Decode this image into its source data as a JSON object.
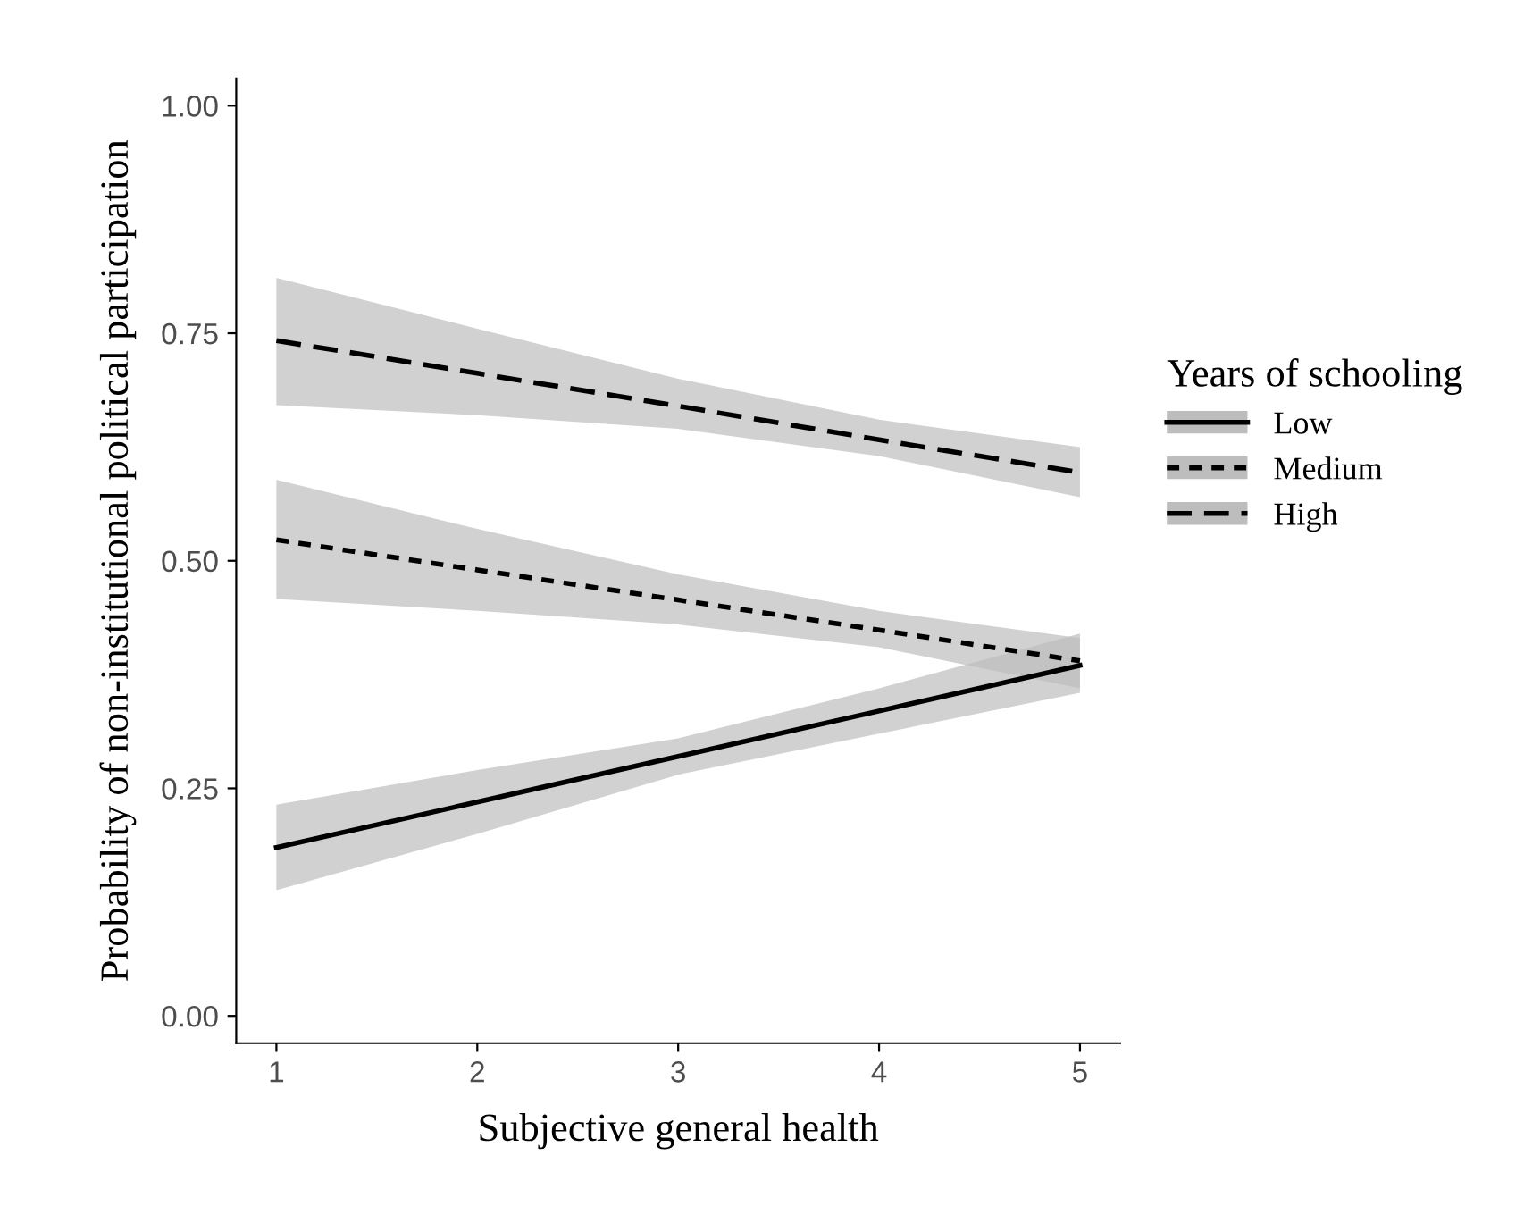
{
  "chart_data": {
    "type": "line",
    "xlabel": "Subjective general health",
    "ylabel": "Probability of non-institutional political participation",
    "legend_title": "Years of schooling",
    "legend": "right",
    "grid": false,
    "xlim": [
      0.8,
      5.2
    ],
    "xticks": [
      1,
      2,
      3,
      4,
      5
    ],
    "ylim": [
      -0.03,
      1.03
    ],
    "yticks": [
      {
        "value": 0,
        "label": "0.00"
      },
      {
        "value": 0.25,
        "label": "0.25"
      },
      {
        "value": 0.5,
        "label": "0.50"
      },
      {
        "value": 0.75,
        "label": "0.75"
      },
      {
        "value": 1,
        "label": "1.00"
      }
    ],
    "x": [
      1,
      2,
      3,
      4,
      5
    ],
    "series": [
      {
        "name": "Low",
        "color": "#000000",
        "line_style": "solid",
        "values": [
          0.185,
          0.235,
          0.285,
          0.335,
          0.385
        ],
        "lower": [
          0.138,
          0.2,
          0.265,
          0.31,
          0.355
        ],
        "upper": [
          0.232,
          0.27,
          0.305,
          0.36,
          0.42
        ]
      },
      {
        "name": "Medium",
        "color": "#000000",
        "line_style": "dotted",
        "values": [
          0.523,
          0.49,
          0.457,
          0.424,
          0.39
        ],
        "lower": [
          0.458,
          0.445,
          0.43,
          0.405,
          0.36
        ],
        "upper": [
          0.589,
          0.535,
          0.485,
          0.445,
          0.415
        ]
      },
      {
        "name": "High",
        "color": "#000000",
        "line_style": "dashed",
        "values": [
          0.742,
          0.706,
          0.67,
          0.633,
          0.597
        ],
        "lower": [
          0.671,
          0.66,
          0.645,
          0.615,
          0.57
        ],
        "upper": [
          0.811,
          0.755,
          0.7,
          0.655,
          0.625
        ]
      }
    ]
  }
}
